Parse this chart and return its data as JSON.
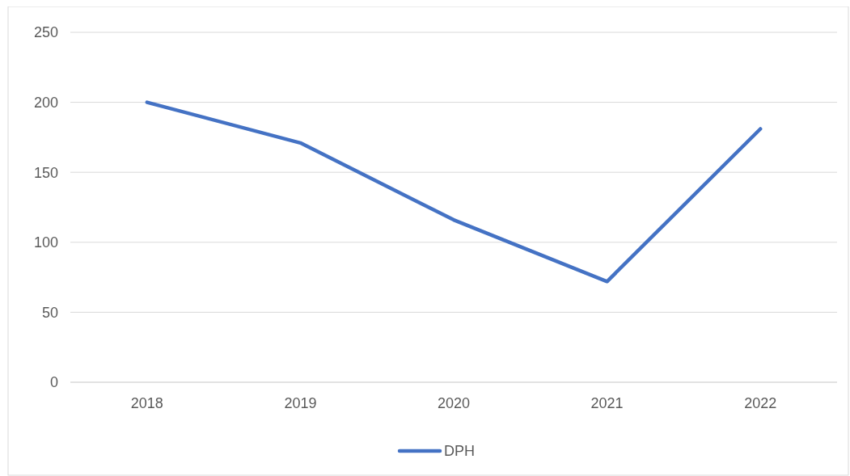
{
  "chart_data": {
    "type": "line",
    "categories": [
      "2018",
      "2019",
      "2020",
      "2021",
      "2022"
    ],
    "series": [
      {
        "name": "DPH",
        "color": "#4472c4",
        "values": [
          200,
          171,
          116,
          72,
          181
        ]
      }
    ],
    "ylim": [
      0,
      250
    ],
    "yticks": [
      0,
      50,
      100,
      150,
      200,
      250
    ],
    "grid": "y",
    "legend": "bottom",
    "line_style": "solid",
    "marker": "none"
  }
}
